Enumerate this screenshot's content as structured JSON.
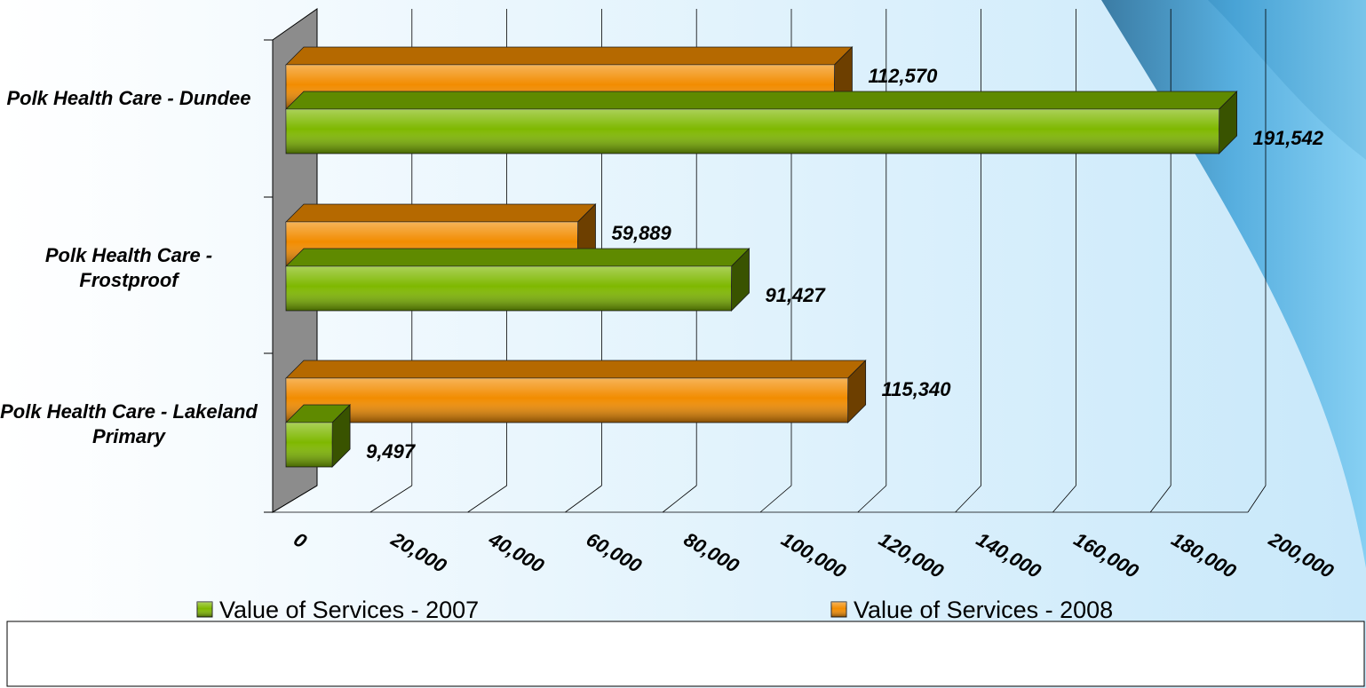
{
  "chart_data": {
    "type": "bar3d_horizontal",
    "categories": [
      "Polk Health Care - Dundee",
      "Polk Health Care - Frostproof",
      "Polk Health Care - Lakeland Primary"
    ],
    "series": [
      {
        "name": "Value of Services - 2007",
        "color": "#7fb800",
        "values": [
          191542,
          91427,
          9497
        ],
        "value_labels": [
          "191,542",
          "91,427",
          "9,497"
        ]
      },
      {
        "name": "Value of Services - 2008",
        "color": "#f28c00",
        "values": [
          112570,
          59889,
          115340
        ],
        "value_labels": [
          "112,570",
          "59,889",
          "115,340"
        ]
      }
    ],
    "xlim": [
      0,
      200000
    ],
    "xticks": [
      0,
      {
        "value": 20000,
        "label": "20,000"
      },
      {
        "value": 40000,
        "label": "40,000"
      },
      {
        "value": 60000,
        "label": "60,000"
      },
      {
        "value": 80000,
        "label": "80,000"
      },
      {
        "value": 100000,
        "label": "100,000"
      },
      {
        "value": 120000,
        "label": "120,000"
      },
      {
        "value": 140000,
        "label": "140,000"
      },
      {
        "value": 160000,
        "label": "160,000"
      },
      {
        "value": 180000,
        "label": "180,000"
      },
      {
        "value": 200000,
        "label": "200,000"
      }
    ],
    "grid": true,
    "legend": "bottom"
  }
}
